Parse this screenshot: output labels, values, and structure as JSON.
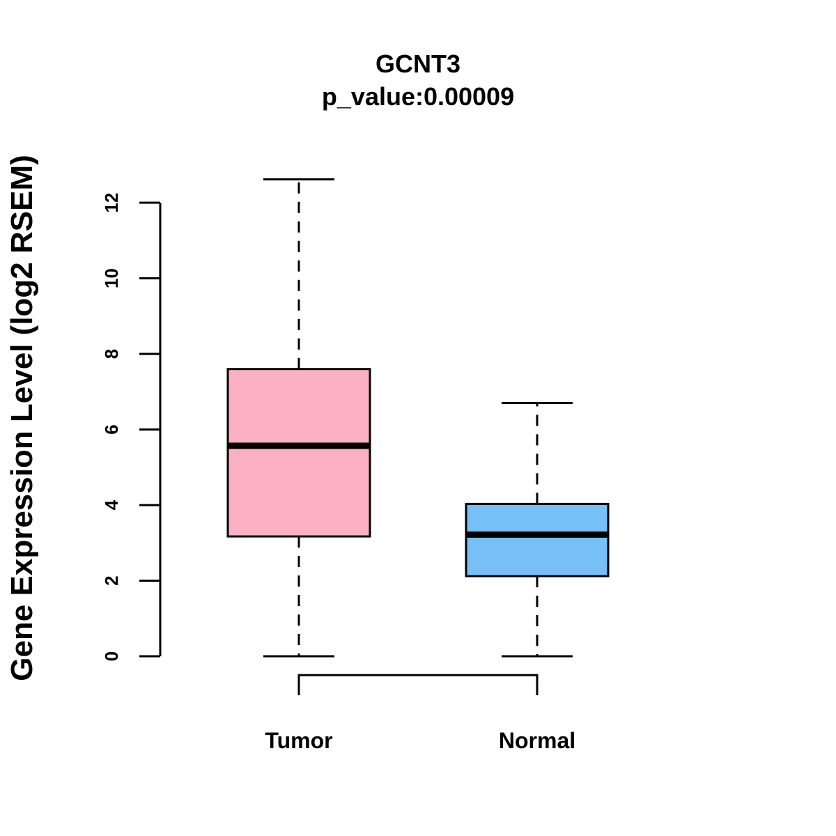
{
  "chart_data": {
    "type": "boxplot",
    "title": "GCNT3",
    "subtitle": "p_value:0.00009",
    "ylabel": "Gene Expression Level (log2 RSEM)",
    "xlabel": "",
    "ylim": [
      0,
      12
    ],
    "yticks": [
      0,
      2,
      4,
      6,
      8,
      10,
      12
    ],
    "categories": [
      "Tumor",
      "Normal"
    ],
    "boxes": [
      {
        "name": "Tumor",
        "min": 0,
        "q1": 3.17,
        "median": 5.57,
        "q3": 7.6,
        "max": 12.62,
        "color": "#FBB1C3"
      },
      {
        "name": "Normal",
        "min": 0,
        "q1": 2.12,
        "median": 3.22,
        "q3": 4.03,
        "max": 6.7,
        "color": "#77C0F7"
      }
    ],
    "comparison_bracket": [
      "Tumor",
      "Normal"
    ]
  }
}
